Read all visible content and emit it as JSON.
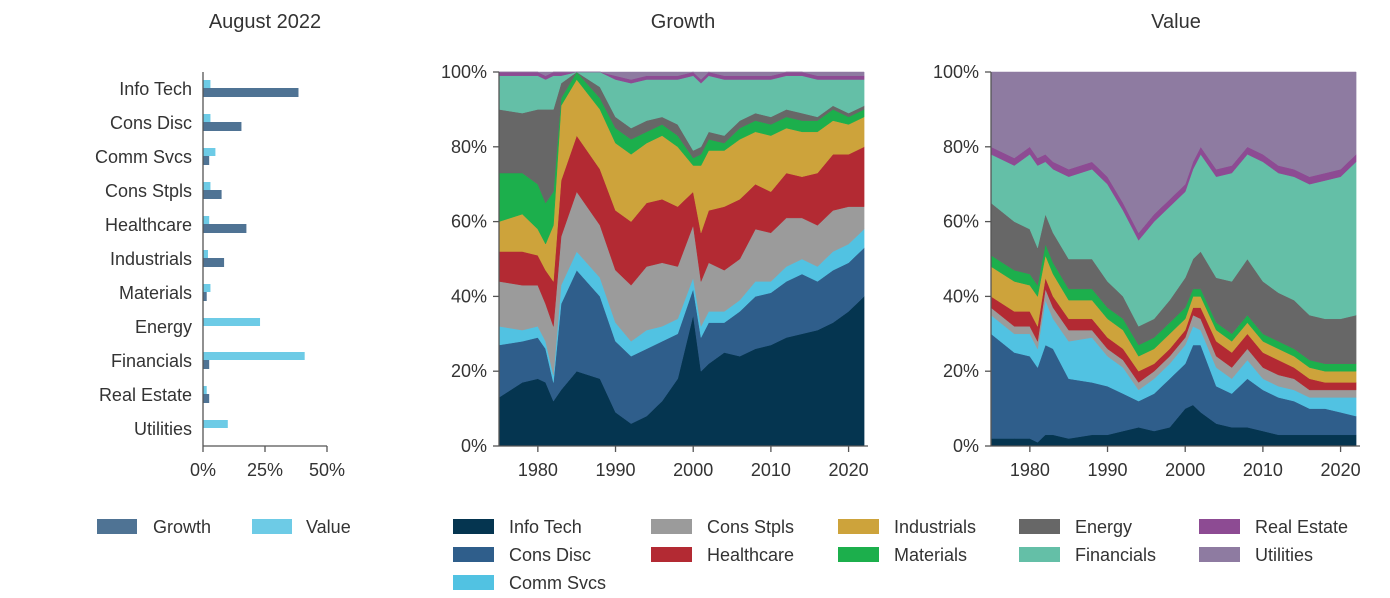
{
  "chart_data": [
    {
      "type": "bar",
      "orientation": "horizontal",
      "title": "August 2022",
      "categories": [
        "Info Tech",
        "Cons Disc",
        "Comm Svcs",
        "Cons Stpls",
        "Healthcare",
        "Industrials",
        "Materials",
        "Energy",
        "Financials",
        "Real Estate",
        "Utilities"
      ],
      "series": [
        {
          "name": "Growth",
          "color": "#4f7394",
          "values": [
            38.5,
            15.5,
            2.5,
            7.5,
            17.5,
            8.5,
            1.5,
            0,
            2.5,
            2.5,
            0
          ]
        },
        {
          "name": "Value",
          "color": "#6dcbe6",
          "values": [
            3,
            3,
            5,
            3,
            2.5,
            2,
            3,
            23,
            41,
            1.5,
            10
          ]
        }
      ],
      "xlim": [
        0,
        50
      ],
      "xticks": [
        "0%",
        "25%",
        "50%"
      ],
      "legend_position": "bottom"
    },
    {
      "type": "area",
      "stacked": true,
      "title": "Growth",
      "x": [
        1975,
        1978,
        1980,
        1981,
        1982,
        1983,
        1985,
        1988,
        1990,
        1992,
        1994,
        1996,
        1998,
        2000,
        2001,
        2002,
        2004,
        2006,
        2008,
        2010,
        2012,
        2014,
        2016,
        2018,
        2020,
        2022
      ],
      "xlim": [
        1975,
        2022.5
      ],
      "xticks": [
        "1980",
        "1990",
        "2000",
        "2010",
        "2020"
      ],
      "ylim": [
        0,
        100
      ],
      "yticks": [
        "0%",
        "20%",
        "40%",
        "60%",
        "80%",
        "100%"
      ],
      "series": [
        {
          "name": "Info Tech",
          "values": [
            13,
            17,
            18,
            17,
            12,
            15,
            20,
            18,
            9,
            6,
            8,
            12,
            18,
            35,
            20,
            22,
            25,
            24,
            26,
            27,
            29,
            30,
            31,
            33,
            36,
            40
          ]
        },
        {
          "name": "Cons Disc",
          "values": [
            14,
            11,
            11,
            9,
            5,
            23,
            27,
            22,
            19,
            18,
            18,
            16,
            12,
            7,
            9,
            11,
            8,
            12,
            14,
            14,
            15,
            16,
            13,
            14,
            13,
            13
          ]
        },
        {
          "name": "Comm Svcs",
          "values": [
            5,
            3,
            3,
            2,
            2,
            5,
            5,
            5,
            5,
            4,
            5,
            4,
            4,
            3,
            3,
            3,
            3,
            3,
            4,
            3,
            4,
            4,
            4,
            5,
            5,
            5
          ]
        },
        {
          "name": "Cons Stpls",
          "values": [
            12,
            12,
            11,
            10,
            13,
            13,
            16,
            14,
            14,
            15,
            17,
            17,
            14,
            14,
            12,
            13,
            11,
            11,
            14,
            13,
            13,
            11,
            11,
            11,
            10,
            6
          ]
        },
        {
          "name": "Healthcare",
          "values": [
            8,
            9,
            8,
            9,
            12,
            15,
            15,
            15,
            16,
            17,
            17,
            17,
            16,
            9,
            13,
            14,
            17,
            16,
            12,
            11,
            12,
            11,
            14,
            15,
            14,
            16
          ]
        },
        {
          "name": "Industrials",
          "values": [
            8,
            10,
            7,
            7,
            15,
            20,
            15,
            16,
            18,
            18,
            16,
            17,
            16,
            7,
            18,
            16,
            15,
            16,
            14,
            15,
            12,
            12,
            11,
            9,
            8,
            8
          ]
        },
        {
          "name": "Materials",
          "values": [
            13,
            11,
            12,
            11,
            9,
            2,
            2,
            3,
            4,
            4,
            3,
            3,
            3,
            2,
            3,
            3,
            2,
            3,
            3,
            3,
            3,
            3,
            3,
            3,
            2,
            2
          ]
        },
        {
          "name": "Energy",
          "values": [
            17,
            16,
            20,
            25,
            22,
            4,
            3,
            3,
            3,
            3,
            3,
            2,
            3,
            2,
            2,
            2,
            2,
            2,
            2,
            2,
            2,
            2,
            1,
            1,
            1,
            1
          ]
        },
        {
          "name": "Financials",
          "values": [
            9,
            10,
            9,
            8,
            9,
            2,
            6,
            7,
            10,
            12,
            11,
            10,
            12,
            20,
            17,
            15,
            15,
            11,
            9,
            10,
            9,
            10,
            10,
            7,
            9,
            7
          ]
        },
        {
          "name": "Real Estate",
          "values": [
            1,
            1,
            1,
            1,
            1,
            1,
            1,
            1,
            1,
            1,
            1,
            1,
            1,
            1,
            1,
            1,
            1,
            1,
            1,
            1,
            1,
            1,
            1,
            1,
            1,
            1
          ]
        },
        {
          "name": "Utilities",
          "values": [
            0,
            0,
            0,
            1,
            0,
            0,
            0,
            0,
            1,
            2,
            1,
            1,
            1,
            0,
            2,
            0,
            1,
            1,
            1,
            1,
            0,
            0,
            1,
            1,
            1,
            1
          ]
        }
      ]
    },
    {
      "type": "area",
      "stacked": true,
      "title": "Value",
      "x": [
        1975,
        1978,
        1980,
        1981,
        1982,
        1983,
        1985,
        1988,
        1990,
        1992,
        1994,
        1996,
        1998,
        2000,
        2001,
        2002,
        2004,
        2006,
        2008,
        2010,
        2012,
        2014,
        2016,
        2018,
        2020,
        2022
      ],
      "xlim": [
        1975,
        2022.5
      ],
      "xticks": [
        "1980",
        "1990",
        "2000",
        "2010",
        "2020"
      ],
      "ylim": [
        0,
        100
      ],
      "yticks": [
        "0%",
        "20%",
        "40%",
        "60%",
        "80%",
        "100%"
      ],
      "series": [
        {
          "name": "Info Tech",
          "values": [
            2,
            2,
            2,
            1,
            3,
            3,
            2,
            3,
            3,
            4,
            5,
            4,
            5,
            10,
            11,
            9,
            6,
            5,
            5,
            4,
            3,
            3,
            3,
            3,
            3,
            3
          ]
        },
        {
          "name": "Cons Disc",
          "values": [
            28,
            23,
            22,
            20,
            24,
            23,
            16,
            14,
            13,
            10,
            7,
            10,
            13,
            12,
            16,
            18,
            10,
            9,
            13,
            11,
            10,
            9,
            7,
            7,
            6,
            5
          ]
        },
        {
          "name": "Comm Svcs",
          "values": [
            5,
            5,
            6,
            5,
            12,
            8,
            10,
            12,
            8,
            7,
            3,
            4,
            4,
            5,
            5,
            4,
            5,
            4,
            5,
            3,
            3,
            3,
            3,
            3,
            4,
            5
          ]
        },
        {
          "name": "Cons Stpls",
          "values": [
            2,
            2,
            2,
            2,
            3,
            3,
            3,
            2,
            2,
            2,
            2,
            2,
            2,
            2,
            3,
            3,
            3,
            3,
            3,
            3,
            3,
            3,
            2,
            2,
            2,
            2
          ]
        },
        {
          "name": "Healthcare",
          "values": [
            3,
            4,
            4,
            4,
            3,
            3,
            3,
            3,
            3,
            3,
            3,
            2,
            2,
            2,
            2,
            3,
            4,
            4,
            4,
            4,
            4,
            3,
            3,
            2,
            2,
            2
          ]
        },
        {
          "name": "Industrials",
          "values": [
            8,
            8,
            7,
            8,
            6,
            6,
            5,
            5,
            5,
            5,
            4,
            4,
            4,
            3,
            3,
            3,
            3,
            3,
            3,
            3,
            3,
            3,
            3,
            3,
            3,
            3
          ]
        },
        {
          "name": "Materials",
          "values": [
            3,
            3,
            3,
            3,
            3,
            3,
            3,
            3,
            3,
            3,
            3,
            3,
            3,
            3,
            2,
            2,
            2,
            2,
            2,
            2,
            2,
            2,
            2,
            2,
            2,
            2
          ]
        },
        {
          "name": "Energy",
          "values": [
            14,
            13,
            12,
            10,
            8,
            8,
            8,
            8,
            7,
            6,
            5,
            5,
            6,
            8,
            8,
            10,
            12,
            14,
            15,
            14,
            13,
            13,
            12,
            12,
            12,
            13
          ]
        },
        {
          "name": "Financials",
          "values": [
            13,
            15,
            20,
            22,
            14,
            17,
            22,
            24,
            26,
            23,
            23,
            26,
            25,
            23,
            24,
            26,
            27,
            29,
            28,
            32,
            32,
            33,
            35,
            37,
            38,
            41
          ]
        },
        {
          "name": "Real Estate",
          "values": [
            2,
            2,
            2,
            2,
            2,
            2,
            2,
            2,
            2,
            2,
            2,
            2,
            2,
            2,
            2,
            2,
            2,
            2,
            2,
            2,
            2,
            2,
            2,
            2,
            2,
            2
          ]
        },
        {
          "name": "Utilities",
          "values": [
            20,
            23,
            20,
            23,
            22,
            24,
            26,
            24,
            28,
            35,
            43,
            38,
            34,
            30,
            24,
            20,
            26,
            25,
            20,
            22,
            25,
            26,
            28,
            27,
            26,
            22
          ]
        }
      ]
    }
  ],
  "sector_colors": {
    "Info Tech": "#053550",
    "Cons Disc": "#2f5e8b",
    "Comm Svcs": "#51c2e2",
    "Cons Stpls": "#9b9b9b",
    "Healthcare": "#b32a33",
    "Industrials": "#cda33b",
    "Materials": "#1caf4c",
    "Energy": "#676767",
    "Financials": "#64bfa7",
    "Real Estate": "#8d4b93",
    "Utilities": "#8e7ba1"
  }
}
